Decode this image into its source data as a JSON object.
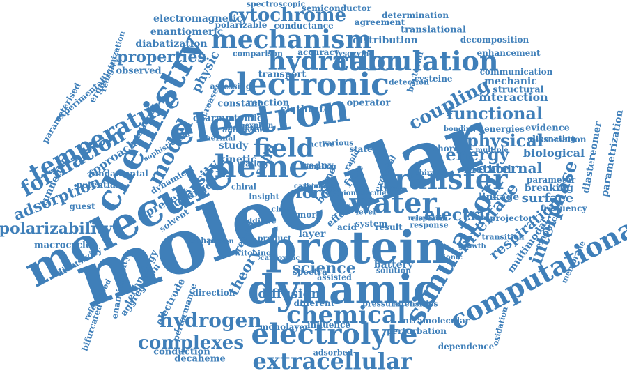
{
  "color": "#3f7fb9",
  "background": "#ffffff",
  "words": [
    {
      "t": "molecular",
      "s": 110,
      "r": -20
    },
    {
      "t": "molecule",
      "s": 64,
      "r": -28
    },
    {
      "t": "electron",
      "s": 56,
      "r": -8
    },
    {
      "t": "protein",
      "s": 64,
      "r": 0
    },
    {
      "t": "dynamic",
      "s": 58,
      "r": 0
    },
    {
      "t": "electronic",
      "s": 44,
      "r": 0
    },
    {
      "t": "chemistry",
      "s": 50,
      "r": -62
    },
    {
      "t": "mechanism",
      "s": 36,
      "r": 0
    },
    {
      "t": "calculation",
      "s": 38,
      "r": 0
    },
    {
      "t": "hydration",
      "s": 36,
      "r": 0
    },
    {
      "t": "heme",
      "s": 44,
      "r": 0
    },
    {
      "t": "transfer",
      "s": 40,
      "r": 0
    },
    {
      "t": "water",
      "s": 40,
      "r": 0
    },
    {
      "t": "electrolyte",
      "s": 40,
      "r": 0
    },
    {
      "t": "chemical",
      "s": 34,
      "r": 0
    },
    {
      "t": "simulation",
      "s": 40,
      "r": -60
    },
    {
      "t": "computational",
      "s": 38,
      "r": -28
    },
    {
      "t": "extracellular",
      "s": 32,
      "r": 0
    },
    {
      "t": "field",
      "s": 36,
      "r": 0
    },
    {
      "t": "temperature",
      "s": 34,
      "r": -28
    },
    {
      "t": "formation",
      "s": 30,
      "r": -30
    },
    {
      "t": "model",
      "s": 30,
      "r": -62
    },
    {
      "t": "hydrogen",
      "s": 28,
      "r": 0
    },
    {
      "t": "complexes",
      "s": 26,
      "r": 0
    },
    {
      "t": "cytochrome",
      "s": 26,
      "r": 0
    },
    {
      "t": "coupling",
      "s": 26,
      "r": -28
    },
    {
      "t": "functional",
      "s": 24,
      "r": 0
    },
    {
      "t": "physical",
      "s": 24,
      "r": 0
    },
    {
      "t": "energy",
      "s": 24,
      "r": 0
    },
    {
      "t": "interphase",
      "s": 26,
      "r": -70
    },
    {
      "t": "interface",
      "s": 24,
      "r": -50
    },
    {
      "t": "electric",
      "s": 24,
      "r": 0
    },
    {
      "t": "science",
      "s": 22,
      "r": 0
    },
    {
      "t": "force",
      "s": 22,
      "r": 0
    },
    {
      "t": "properties",
      "s": 22,
      "r": 0
    },
    {
      "t": "polarizability",
      "s": 22,
      "r": 0
    },
    {
      "t": "adsorption",
      "s": 22,
      "r": -22
    },
    {
      "t": "density",
      "s": 20,
      "r": -48
    },
    {
      "t": "external",
      "s": 20,
      "r": 0
    },
    {
      "t": "respiration",
      "s": 20,
      "r": -40
    },
    {
      "t": "theory",
      "s": 20,
      "r": -62
    },
    {
      "t": "solid",
      "s": 18,
      "r": -62
    },
    {
      "t": "surface",
      "s": 18,
      "r": 0
    },
    {
      "t": "diffusion",
      "s": 18,
      "r": 0
    },
    {
      "t": "method",
      "s": 16,
      "r": 0
    },
    {
      "t": "biological",
      "s": 16,
      "r": 0
    },
    {
      "t": "physic",
      "s": 18,
      "r": -62
    },
    {
      "t": "interaction",
      "s": 16,
      "r": 0
    },
    {
      "t": "electromagnetic",
      "s": 14,
      "r": 0
    },
    {
      "t": "enantiomeric",
      "s": 14,
      "r": 0
    },
    {
      "t": "diabatization",
      "s": 14,
      "r": 0
    },
    {
      "t": "distribution",
      "s": 14,
      "r": 0
    },
    {
      "t": "translational",
      "s": 13,
      "r": 0
    },
    {
      "t": "study",
      "s": 14,
      "r": 0
    },
    {
      "t": "kinetic",
      "s": 14,
      "r": 0
    },
    {
      "t": "present",
      "s": 16,
      "r": -28
    },
    {
      "t": "charge",
      "s": 16,
      "r": -28
    },
    {
      "t": "approach",
      "s": 16,
      "r": -35
    },
    {
      "t": "macrocycle",
      "s": 13,
      "r": 0
    },
    {
      "t": "diffusivity",
      "s": 13,
      "r": -30
    },
    {
      "t": "ergodicity",
      "s": 13,
      "r": -60
    },
    {
      "t": "parameterised",
      "s": 12,
      "r": -60
    },
    {
      "t": "experimental",
      "s": 12,
      "r": -40
    },
    {
      "t": "reorganization",
      "s": 11,
      "r": -72
    },
    {
      "t": "observed",
      "s": 13,
      "r": 0
    },
    {
      "t": "polarizable",
      "s": 12,
      "r": 0
    },
    {
      "t": "conductance",
      "s": 12,
      "r": 0
    },
    {
      "t": "semiconductor",
      "s": 12,
      "r": 0
    },
    {
      "t": "spectroscopic",
      "s": 11,
      "r": 0
    },
    {
      "t": "agreement",
      "s": 12,
      "r": 0
    },
    {
      "t": "determination",
      "s": 12,
      "r": 0
    },
    {
      "t": "decomposition",
      "s": 12,
      "r": 0
    },
    {
      "t": "enhancement",
      "s": 12,
      "r": 0
    },
    {
      "t": "communication",
      "s": 12,
      "r": 0
    },
    {
      "t": "mechanic",
      "s": 14,
      "r": 0
    },
    {
      "t": "structural",
      "s": 13,
      "r": 0
    },
    {
      "t": "cysteine",
      "s": 12,
      "r": 0
    },
    {
      "t": "clathrate",
      "s": 14,
      "r": 0
    },
    {
      "t": "transport",
      "s": 13,
      "r": 0
    },
    {
      "t": "constant",
      "s": 13,
      "r": 0
    },
    {
      "t": "reaction",
      "s": 13,
      "r": 0
    },
    {
      "t": "operator",
      "s": 13,
      "r": 0
    },
    {
      "t": "charmm",
      "s": 13,
      "r": 0
    },
    {
      "t": "atomic",
      "s": 13,
      "r": 0
    },
    {
      "t": "thermal",
      "s": 11,
      "r": 0
    },
    {
      "t": "evidence",
      "s": 13,
      "r": 0
    },
    {
      "t": "energies",
      "s": 12,
      "r": 0
    },
    {
      "t": "alternating",
      "s": 11,
      "r": 0
    },
    {
      "t": "dissociation",
      "s": 12,
      "r": 0
    },
    {
      "t": "diastereomer",
      "s": 14,
      "r": -80
    },
    {
      "t": "parametrization",
      "s": 14,
      "r": -80
    },
    {
      "t": "breaking",
      "s": 14,
      "r": 0
    },
    {
      "t": "parameter",
      "s": 12,
      "r": 0
    },
    {
      "t": "linkage",
      "s": 14,
      "r": 0
    },
    {
      "t": "frequency",
      "s": 12,
      "r": 0
    },
    {
      "t": "projector",
      "s": 12,
      "r": 0
    },
    {
      "t": "transition",
      "s": 11,
      "r": 0
    },
    {
      "t": "multimodal",
      "s": 14,
      "r": -55
    },
    {
      "t": "membrane",
      "s": 11,
      "r": -65
    },
    {
      "t": "empirical",
      "s": 12,
      "r": -60
    },
    {
      "t": "battery",
      "s": 14,
      "r": 0
    },
    {
      "t": "solution",
      "s": 11,
      "r": 0
    },
    {
      "t": "pressure",
      "s": 11,
      "r": 0
    },
    {
      "t": "intensities",
      "s": 11,
      "r": 0
    },
    {
      "t": "different",
      "s": 12,
      "r": 0
    },
    {
      "t": "influence",
      "s": 12,
      "r": 0
    },
    {
      "t": "monolayer",
      "s": 12,
      "r": 0
    },
    {
      "t": "adsorbed",
      "s": 11,
      "r": 0
    },
    {
      "t": "decaheme",
      "s": 13,
      "r": 0
    },
    {
      "t": "conduction",
      "s": 13,
      "r": 0
    },
    {
      "t": "dependence",
      "s": 12,
      "r": 0
    },
    {
      "t": "perturbation",
      "s": 12,
      "r": 0
    },
    {
      "t": "intramolecular",
      "s": 12,
      "r": 0
    },
    {
      "t": "oxidation",
      "s": 11,
      "r": -75
    },
    {
      "t": "bifurcated",
      "s": 12,
      "r": -72
    },
    {
      "t": "referenced",
      "s": 11,
      "r": -60
    },
    {
      "t": "enantiopurity",
      "s": 12,
      "r": -80
    },
    {
      "t": "aggregation",
      "s": 13,
      "r": -55
    },
    {
      "t": "technology",
      "s": 14,
      "r": -62
    },
    {
      "t": "electrode",
      "s": 14,
      "r": -62
    },
    {
      "t": "performance",
      "s": 12,
      "r": -72
    },
    {
      "t": "direction",
      "s": 12,
      "r": 0
    },
    {
      "t": "switching",
      "s": 11,
      "r": 0
    },
    {
      "t": "carboxylic",
      "s": 10,
      "r": 0
    },
    {
      "t": "assisted",
      "s": 11,
      "r": 0
    },
    {
      "t": "spectra",
      "s": 12,
      "r": 0
    },
    {
      "t": "product",
      "s": 11,
      "r": 0
    },
    {
      "t": "enhance",
      "s": 11,
      "r": 0
    },
    {
      "t": "report",
      "s": 14,
      "r": -62
    },
    {
      "t": "additive",
      "s": 11,
      "r": 0
    },
    {
      "t": "insight",
      "s": 11,
      "r": 0
    },
    {
      "t": "chem",
      "s": 11,
      "r": 0
    },
    {
      "t": "more",
      "s": 12,
      "r": 0
    },
    {
      "t": "layer",
      "s": 14,
      "r": 0
    },
    {
      "t": "acid",
      "s": 12,
      "r": 0
    },
    {
      "t": "result",
      "s": 12,
      "r": 0
    },
    {
      "t": "level",
      "s": 11,
      "r": 0
    },
    {
      "t": "system",
      "s": 12,
      "r": 0
    },
    {
      "t": "effect",
      "s": 14,
      "r": -40
    },
    {
      "t": "bond",
      "s": 14,
      "r": -50
    },
    {
      "t": "time",
      "s": 13,
      "r": -60
    },
    {
      "t": "free",
      "s": 16,
      "r": -55
    },
    {
      "t": "redox",
      "s": 14,
      "r": 0
    },
    {
      "t": "rate",
      "s": 13,
      "r": 0
    },
    {
      "t": "type",
      "s": 12,
      "r": 0
    },
    {
      "t": "metal",
      "s": 12,
      "r": -60
    },
    {
      "t": "rapid",
      "s": 11,
      "r": -60
    },
    {
      "t": "state",
      "s": 12,
      "r": 0
    },
    {
      "t": "active",
      "s": 11,
      "r": 0
    },
    {
      "t": "various",
      "s": 11,
      "r": 0
    },
    {
      "t": "static",
      "s": 11,
      "r": 0
    },
    {
      "t": "chiral",
      "s": 11,
      "r": 0
    },
    {
      "t": "solvent",
      "s": 12,
      "r": -35
    },
    {
      "t": "guest",
      "s": 12,
      "r": 0
    },
    {
      "t": "tunneling",
      "s": 14,
      "r": -65
    },
    {
      "t": "potential",
      "s": 12,
      "r": 0
    },
    {
      "t": "fundamental",
      "s": 12,
      "r": 0
    },
    {
      "t": "dynamical",
      "s": 12,
      "r": -30
    },
    {
      "t": "sophisticated",
      "s": 10,
      "r": -30
    },
    {
      "t": "rotational",
      "s": 12,
      "r": -60
    },
    {
      "t": "increase",
      "s": 12,
      "r": -65
    },
    {
      "t": "assessing",
      "s": 11,
      "r": 0
    },
    {
      "t": "detection",
      "s": 11,
      "r": 0
    },
    {
      "t": "bacterial",
      "s": 12,
      "r": -75
    },
    {
      "t": "lysozyme",
      "s": 11,
      "r": 0
    },
    {
      "t": "accuracy",
      "s": 12,
      "r": 0
    },
    {
      "t": "comparison",
      "s": 11,
      "r": 0
    },
    {
      "t": "accelerate",
      "s": 11,
      "r": 0
    },
    {
      "t": "diffusivities",
      "s": 10,
      "r": 0
    },
    {
      "t": "explain",
      "s": 10,
      "r": 0
    },
    {
      "t": "shore",
      "s": 12,
      "r": 0
    },
    {
      "t": "multiple",
      "s": 10,
      "r": 0
    },
    {
      "t": "chirality",
      "s": 10,
      "r": 0
    },
    {
      "t": "relaxation",
      "s": 10,
      "r": 0
    },
    {
      "t": "cisplatin",
      "s": 11,
      "r": 0
    },
    {
      "t": "response",
      "s": 11,
      "r": 0
    },
    {
      "t": "proton",
      "s": 10,
      "r": 0
    },
    {
      "t": "bonding",
      "s": 10,
      "r": 0
    },
    {
      "t": "excess",
      "s": 12,
      "r": -62
    },
    {
      "t": "biomolecules",
      "s": 10,
      "r": 0
    },
    {
      "t": "ionic",
      "s": 10,
      "r": 0
    },
    {
      "t": "growth",
      "s": 10,
      "r": 0
    },
    {
      "t": "sampling",
      "s": 10,
      "r": 0
    },
    {
      "t": "carbonate",
      "s": 10,
      "r": 0
    },
    {
      "t": "tetra",
      "s": 10,
      "r": 0
    }
  ]
}
